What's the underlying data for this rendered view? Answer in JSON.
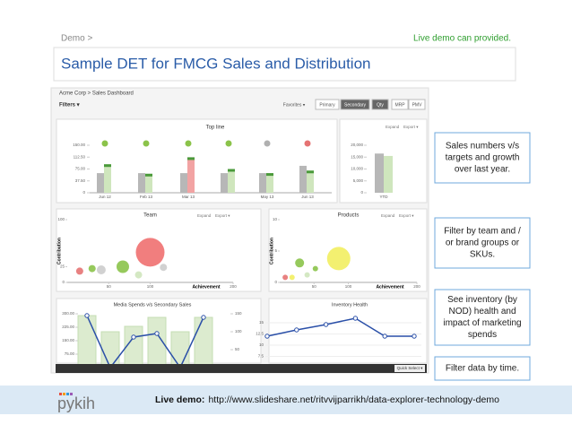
{
  "header": {
    "breadcrumb": "Demo >",
    "note": "Live demo can provided.",
    "title": "Sample DET for FMCG Sales and Distribution"
  },
  "dashboard": {
    "breadcrumb": "Acme Corp > Sales Dashboard",
    "filters": "Filters ▾",
    "buttons": [
      "Favorites ▾",
      "Primary",
      "Secondary",
      "Qty",
      "MRP",
      "PMV"
    ],
    "active": [
      false,
      false,
      true,
      true,
      false,
      false
    ],
    "menu": [
      "Expand",
      "Export ▾"
    ],
    "top_line": {
      "title": "Top line",
      "categories": [
        "Jun 12",
        "Feb 13",
        "Mar 13",
        null,
        "May 13",
        "Jun 13"
      ],
      "ylim": [
        0,
        150
      ],
      "yticks": [
        0,
        {
          "value": 37.5,
          "label": "37.50"
        },
        {
          "value": 75,
          "label": "75.00"
        },
        {
          "value": 112.5,
          "label": "112.50"
        },
        {
          "value": 150,
          "label": "150.00"
        }
      ],
      "last_year": [
        62,
        62,
        62,
        62,
        62,
        85
      ],
      "current": [
        90,
        60,
        112,
        75,
        62,
        70
      ],
      "current_colors": [
        "#cfe6bd",
        "#cfe6bd",
        "#f2a3a3",
        "#cfe6bd",
        "#cfe6bd",
        "#cfe6bd"
      ],
      "target_colors": [
        "#8bc34a",
        "#8bc34a",
        "#8bc34a",
        "#8bc34a",
        "#b0b0b0",
        "#e57373"
      ]
    },
    "ytd": {
      "label": "YTD",
      "ylim": [
        0,
        20000
      ],
      "yticks": [
        0,
        {
          "value": 5000,
          "label": "5,000"
        },
        {
          "value": 10000,
          "label": "10,000"
        },
        {
          "value": 15000,
          "label": "15,000"
        },
        {
          "value": 20000,
          "label": "20,000"
        }
      ],
      "values": [
        16500,
        15500
      ],
      "colors": [
        "#b7b7b7",
        "#cfe6bd"
      ]
    },
    "team": {
      "title": "Team",
      "ylabel": "Contribution",
      "xlabel": "Achievement",
      "xlim": [
        0,
        200
      ],
      "ylim": [
        0,
        100
      ],
      "xticks": [
        50,
        100,
        200
      ],
      "yticks": [
        0,
        25,
        100
      ],
      "bubbles": [
        {
          "x": 100,
          "y": 48,
          "r": 16,
          "color": "#f07070"
        },
        {
          "x": 67,
          "y": 25,
          "r": 7,
          "color": "#8bc34a"
        },
        {
          "x": 41,
          "y": 20,
          "r": 5,
          "color": "#cccccc"
        },
        {
          "x": 15,
          "y": 18,
          "r": 4,
          "color": "#e57373"
        },
        {
          "x": 30,
          "y": 22,
          "r": 4,
          "color": "#8bc34a"
        },
        {
          "x": 86,
          "y": 12,
          "r": 4,
          "color": "#cfe6bd"
        },
        {
          "x": 116,
          "y": 24,
          "r": 4,
          "color": "#cccccc"
        }
      ]
    },
    "products": {
      "title": "Products",
      "ylabel": "Contribution",
      "xlabel": "Achievement",
      "xlim": [
        0,
        200
      ],
      "ylim": [
        0,
        10
      ],
      "xticks": [
        50,
        100,
        200
      ],
      "yticks": [
        0,
        5,
        10
      ],
      "bubbles": [
        {
          "x": 86,
          "y": 3.8,
          "r": 13,
          "color": "#f2ee60"
        },
        {
          "x": 29,
          "y": 3.1,
          "r": 5,
          "color": "#8bc34a"
        },
        {
          "x": 8,
          "y": 0.8,
          "r": 3,
          "color": "#e57373"
        },
        {
          "x": 18,
          "y": 0.8,
          "r": 3,
          "color": "#f2ee60"
        },
        {
          "x": 40,
          "y": 1.2,
          "r": 3,
          "color": "#cfe6bd"
        },
        {
          "x": 52,
          "y": 2.2,
          "r": 3,
          "color": "#8bc34a"
        }
      ]
    },
    "media": {
      "title": "Media Spends v/s Secondary Sales",
      "ylim": [
        0,
        300
      ],
      "yticks": [
        {
          "value": 75,
          "label": "75.00"
        },
        {
          "value": 150,
          "label": "150.00"
        },
        {
          "value": 225,
          "label": "225.00"
        },
        {
          "value": 300,
          "label": "300.00"
        }
      ],
      "y2lim": [
        0,
        150
      ],
      "y2ticks": [
        50,
        100,
        150
      ],
      "bars": [
        290,
        200,
        230,
        280,
        200,
        280
      ],
      "line": [
        145,
        0,
        85,
        95,
        0,
        140
      ]
    },
    "inventory": {
      "title": "Inventory Health",
      "ylim": [
        5,
        17
      ],
      "yticks": [
        {
          "value": 7.5,
          "label": "7.5"
        },
        10,
        {
          "value": 12.5,
          "label": "12.5"
        },
        15
      ],
      "line": [
        12,
        13.4,
        14.6,
        16,
        12,
        12
      ]
    },
    "quick_select": "Quick Select ▾"
  },
  "callouts": [
    [
      "Sales numbers v/s",
      "targets and growth",
      "over last year."
    ],
    [
      "Filter by team and /",
      "or brand groups or",
      "SKUs."
    ],
    [
      "See inventory (by",
      "NOD) health and",
      "impact of marketing",
      "spends"
    ],
    [
      "Filter data by time."
    ]
  ],
  "footer": {
    "logo": "pykih",
    "label": "Live demo:",
    "url": "http://www.slideshare.net/ritvvijparrikh/data-explorer-technology-demo"
  }
}
